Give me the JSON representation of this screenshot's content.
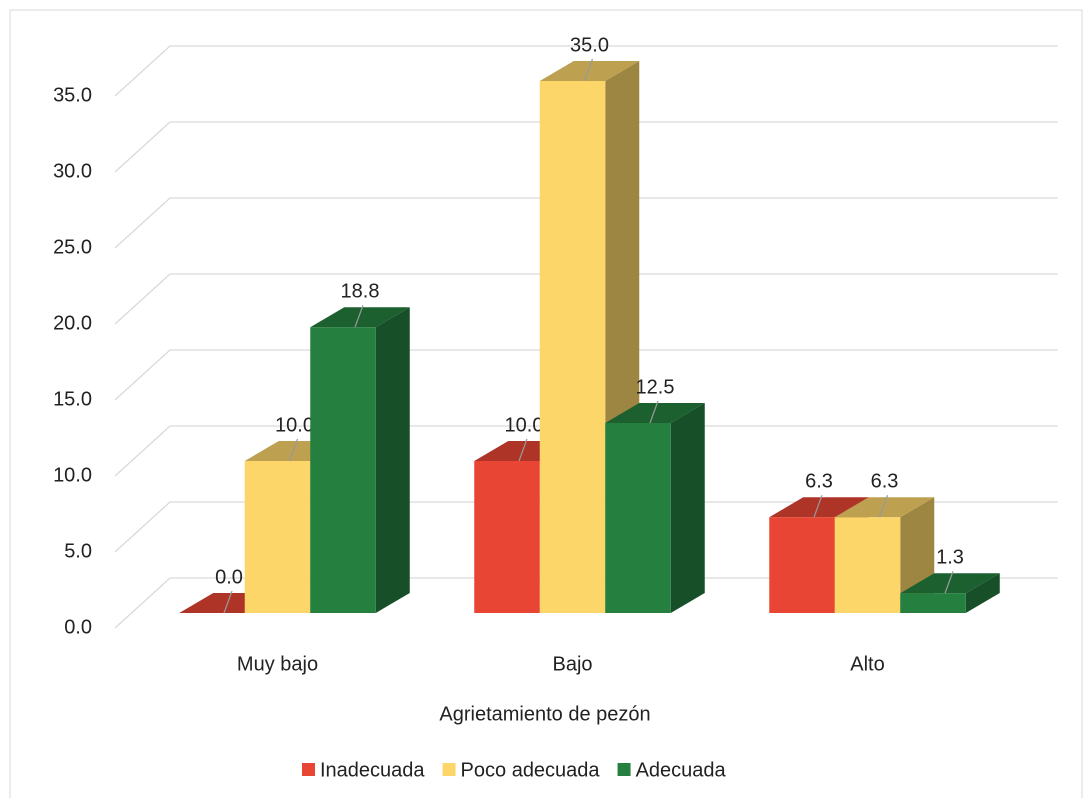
{
  "chart_data": {
    "type": "bar3d",
    "x_label": "Agrietamiento de pezón",
    "categories": [
      "Muy bajo",
      "Bajo",
      "Alto"
    ],
    "series": [
      {
        "name": "Inadecuada",
        "color": "#e84535",
        "values": [
          0,
          10,
          6.3
        ],
        "value_labels": [
          "0.0",
          "10.0",
          "6.3"
        ]
      },
      {
        "name": "Poco adecuada",
        "color": "#fdd66a",
        "values": [
          10,
          35,
          6.3
        ],
        "value_labels": [
          "10.0",
          "35.0",
          "6.3"
        ]
      },
      {
        "name": "Adecuada",
        "color": "#258040",
        "values": [
          18.8,
          12.5,
          1.3
        ],
        "value_labels": [
          "18.8",
          "12.5",
          "1.3"
        ]
      }
    ],
    "ylim": [
      0,
      35
    ],
    "yticks": [
      {
        "value": 0,
        "label": "0.0"
      },
      {
        "value": 5,
        "label": "5.0"
      },
      {
        "value": 10,
        "label": "10.0"
      },
      {
        "value": 15,
        "label": "15.0"
      },
      {
        "value": 20,
        "label": "20.0"
      },
      {
        "value": 25,
        "label": "25.0"
      },
      {
        "value": 30,
        "label": "30.0"
      },
      {
        "value": 35,
        "label": "35.0"
      }
    ],
    "grid": true,
    "legend": "bottom"
  }
}
